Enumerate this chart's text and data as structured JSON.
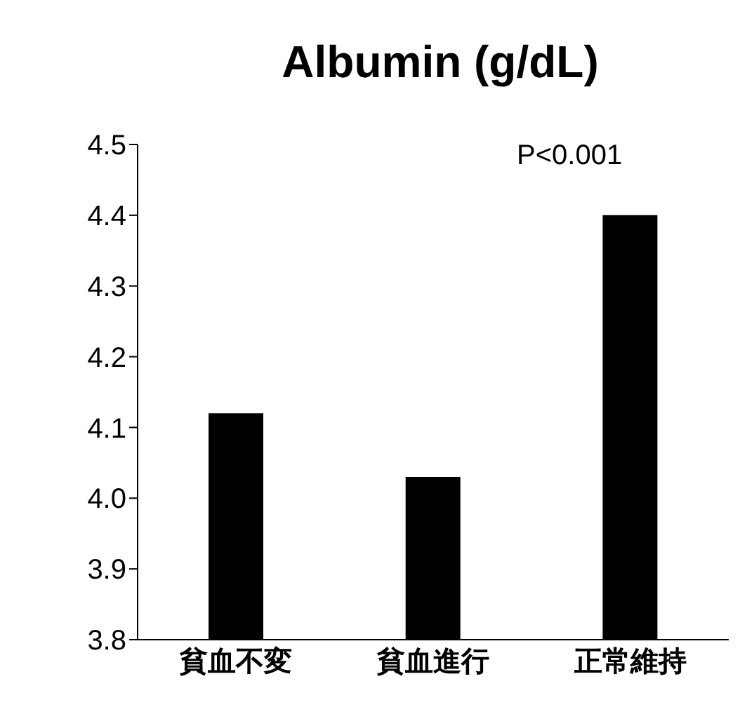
{
  "chart_data": {
    "type": "bar",
    "title": "Albumin (g/dL)",
    "categories": [
      "貧血不変",
      "貧血進行",
      "正常維持"
    ],
    "values": [
      4.12,
      4.03,
      4.4
    ],
    "color": "#000000",
    "ylim": [
      3.8,
      4.5
    ],
    "yticks": [
      3.8,
      3.9,
      {
        "value": 4,
        "label": "4.0"
      },
      4.1,
      4.2,
      4.3,
      4.4,
      4.5
    ],
    "annotations": [
      "P<0.001"
    ],
    "grid": false,
    "legend": false
  }
}
